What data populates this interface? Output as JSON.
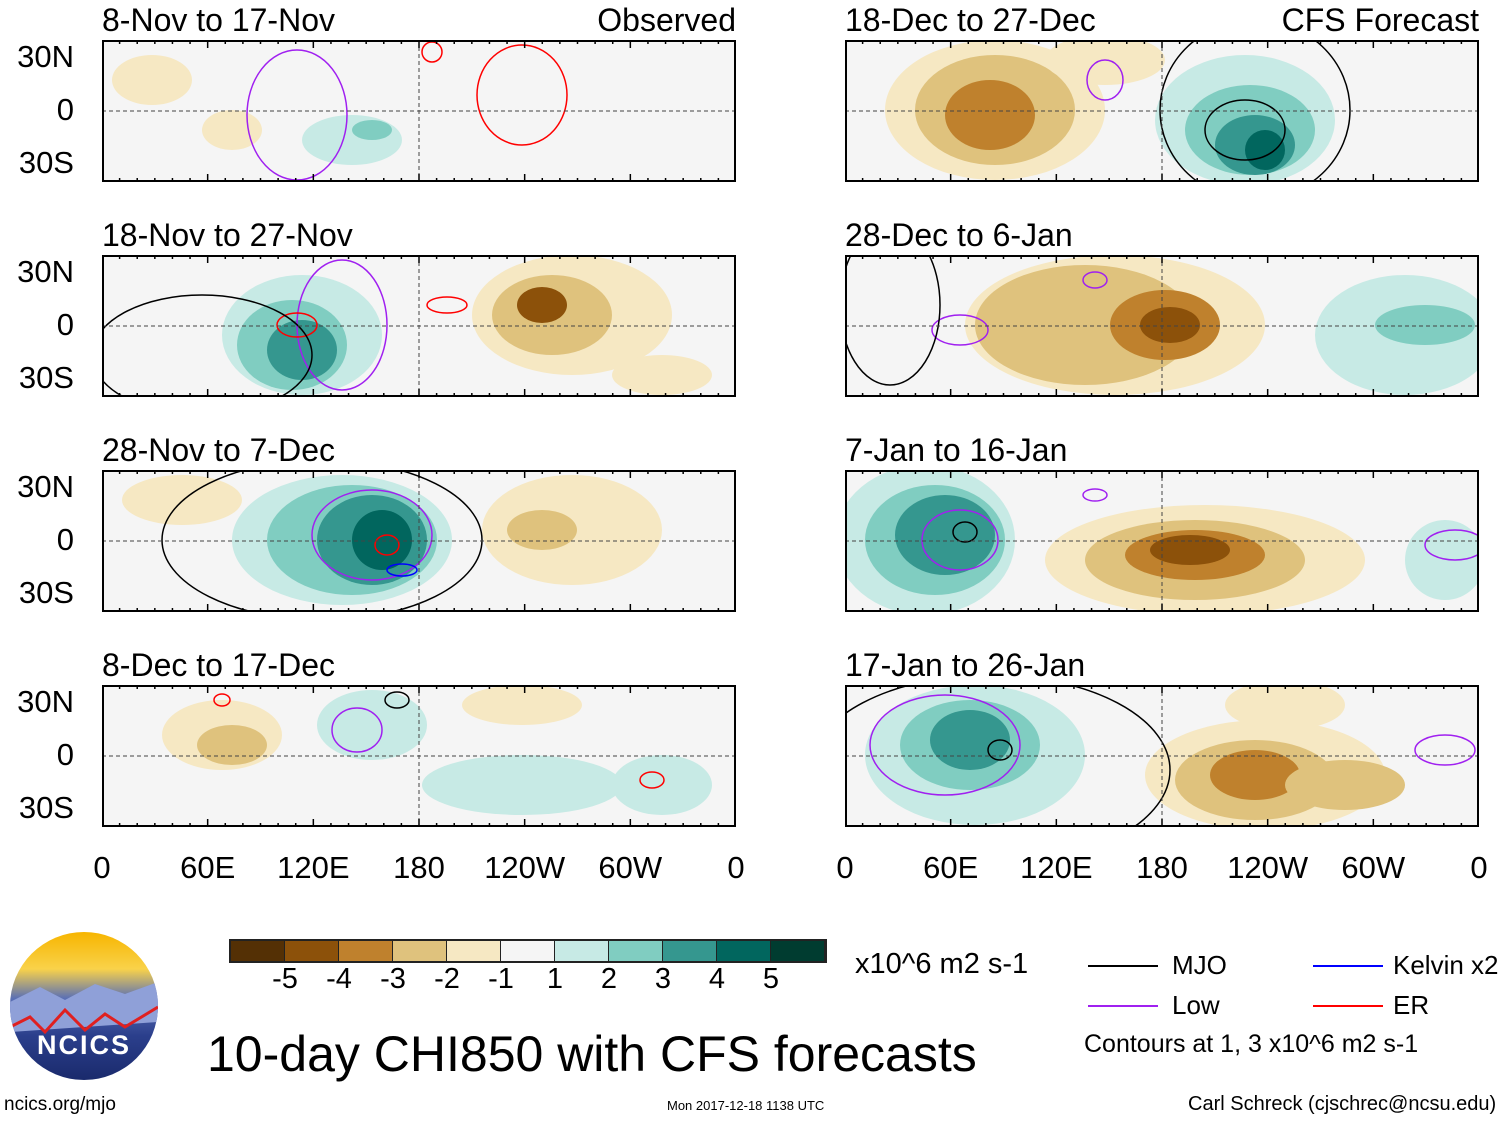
{
  "observed_label": "Observed",
  "forecast_label": "CFS Forecast",
  "lat_labels": [
    "30N",
    "0",
    "30S"
  ],
  "lon_labels": [
    "0",
    "60E",
    "120E",
    "180",
    "120W",
    "60W",
    "0"
  ],
  "colorbar": {
    "ticks": [
      "-5",
      "-4",
      "-3",
      "-2",
      "-1",
      "1",
      "2",
      "3",
      "4",
      "5"
    ],
    "colors": [
      "#543005",
      "#8c510a",
      "#bf812d",
      "#dfc27d",
      "#f6e8c3",
      "#f5f5f5",
      "#c7eae5",
      "#80cdc1",
      "#35978f",
      "#01665e",
      "#003c30"
    ],
    "units": "x10^6 m2 s-1"
  },
  "legend": {
    "mjo": "MJO",
    "kelvin": "Kelvin x2",
    "low": "Low",
    "er": "ER",
    "note": "Contours at 1, 3 x10^6 m2 s-1",
    "colors": {
      "mjo": "#000000",
      "kelvin": "#0000ff",
      "low": "#a020f0",
      "er": "#ff0000"
    }
  },
  "title": "10-day CHI850 with CFS forecasts",
  "logo_text": "NCICS",
  "url": "ncics.org/mjo",
  "timestamp": "Mon 2017-12-18 1138 UTC",
  "author": "Carl Schreck (cjschrec@ncsu.edu)",
  "chart_data": {
    "type": "heatmap",
    "variable": "CHI850 10-day mean anomaly",
    "panels": [
      {
        "period": "8-Nov to 17-Nov",
        "source": "Observed"
      },
      {
        "period": "18-Nov to 27-Nov",
        "source": "Observed"
      },
      {
        "period": "28-Nov to 7-Dec",
        "source": "Observed"
      },
      {
        "period": "8-Dec to 17-Dec",
        "source": "Observed"
      },
      {
        "period": "18-Dec to 27-Dec",
        "source": "CFS Forecast"
      },
      {
        "period": "28-Dec to 6-Jan",
        "source": "CFS Forecast"
      },
      {
        "period": "7-Jan to 16-Jan",
        "source": "CFS Forecast"
      },
      {
        "period": "17-Jan to 26-Jan",
        "source": "CFS Forecast"
      }
    ],
    "ylim": [
      "30S",
      "30N"
    ],
    "xlim": [
      "0",
      "0"
    ]
  }
}
